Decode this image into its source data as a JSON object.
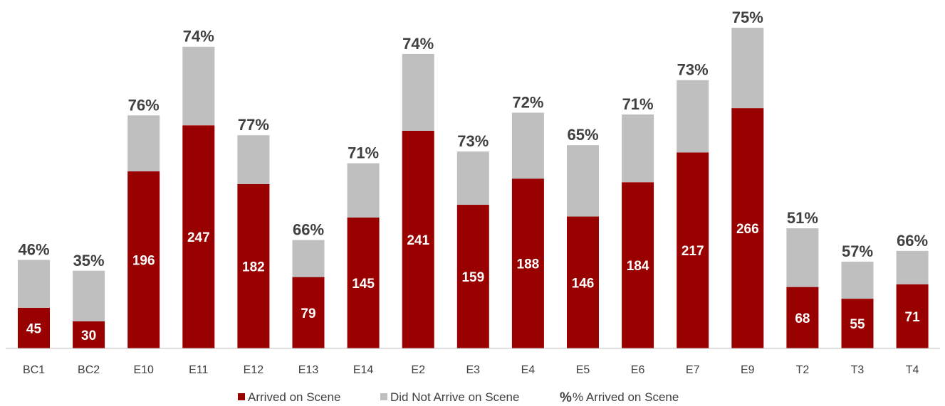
{
  "chart_data": {
    "type": "bar",
    "stacked": true,
    "categories": [
      "BC1",
      "BC2",
      "E10",
      "E11",
      "E12",
      "E13",
      "E14",
      "E2",
      "E3",
      "E4",
      "E5",
      "E6",
      "E7",
      "E9",
      "T2",
      "T3",
      "T4"
    ],
    "series": [
      {
        "name": "Arrived on Scene",
        "color": "#990000",
        "values": [
          45,
          30,
          196,
          247,
          182,
          79,
          145,
          241,
          159,
          188,
          146,
          184,
          217,
          266,
          68,
          55,
          71
        ]
      },
      {
        "name": "Did Not Arrive on Scene",
        "color": "#bfbfbf",
        "values": [
          53,
          56,
          62,
          87,
          54,
          41,
          60,
          85,
          59,
          73,
          79,
          75,
          80,
          89,
          65,
          41,
          37
        ]
      }
    ],
    "percent_series": {
      "name": "% Arrived on Scene",
      "symbol": "%",
      "labels": [
        "46%",
        "35%",
        "76%",
        "74%",
        "77%",
        "66%",
        "71%",
        "74%",
        "73%",
        "72%",
        "65%",
        "71%",
        "73%",
        "75%",
        "51%",
        "57%",
        "66%"
      ]
    },
    "ylim": [
      0,
      370
    ],
    "grid": false,
    "legend_position": "bottom",
    "axis_color": "#bfbfbf",
    "text_color": "#404040"
  }
}
